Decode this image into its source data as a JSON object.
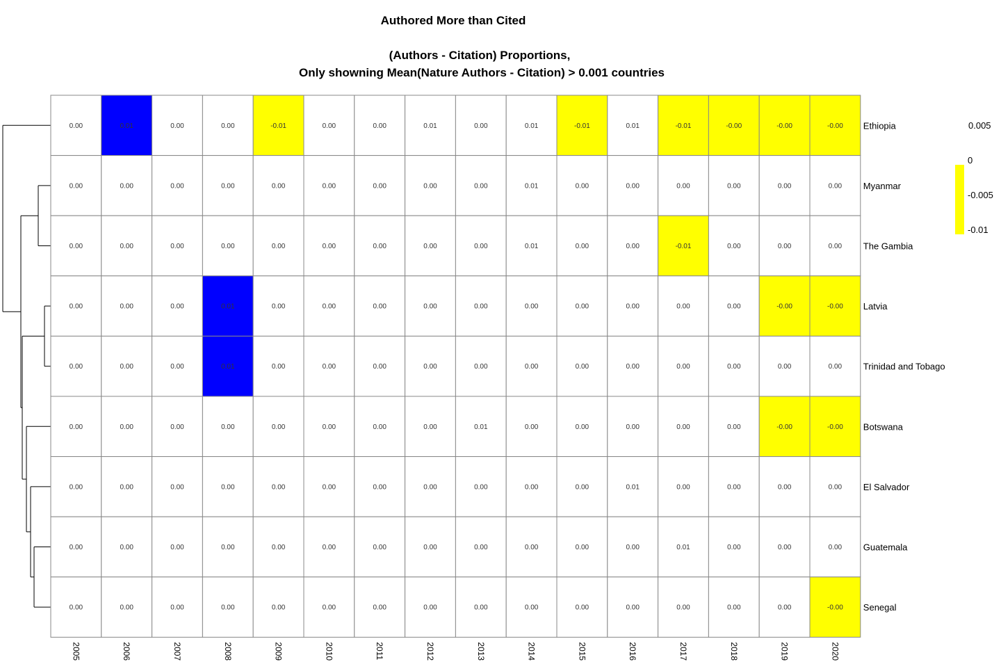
{
  "chart_data": {
    "type": "heatmap",
    "title": "Authored More than Cited",
    "subtitle_line1": "(Authors - Citation) Proportions,",
    "subtitle_line2": "Only showning Mean(Nature Authors - Citation) > 0.001 countries",
    "columns": [
      "2005",
      "2006",
      "2007",
      "2008",
      "2009",
      "2010",
      "2011",
      "2012",
      "2013",
      "2014",
      "2015",
      "2016",
      "2017",
      "2018",
      "2019",
      "2020"
    ],
    "rows": [
      "Ethiopia",
      "Myanmar",
      "The Gambia",
      "Latvia",
      "Trinidad and Tobago",
      "Botswana",
      "El Salvador",
      "Guatemala",
      "Senegal"
    ],
    "cell_labels": [
      [
        "0.00",
        "0.01",
        "0.00",
        "0.00",
        "-0.01",
        "0.00",
        "0.00",
        "0.01",
        "0.00",
        "0.01",
        "-0.01",
        "0.01",
        "-0.01",
        "-0.00",
        "-0.00",
        "-0.00"
      ],
      [
        "0.00",
        "0.00",
        "0.00",
        "0.00",
        "0.00",
        "0.00",
        "0.00",
        "0.00",
        "0.00",
        "0.01",
        "0.00",
        "0.00",
        "0.00",
        "0.00",
        "0.00",
        "0.00"
      ],
      [
        "0.00",
        "0.00",
        "0.00",
        "0.00",
        "0.00",
        "0.00",
        "0.00",
        "0.00",
        "0.00",
        "0.01",
        "0.00",
        "0.00",
        "-0.01",
        "0.00",
        "0.00",
        "0.00"
      ],
      [
        "0.00",
        "0.00",
        "0.00",
        "0.01",
        "0.00",
        "0.00",
        "0.00",
        "0.00",
        "0.00",
        "0.00",
        "0.00",
        "0.00",
        "0.00",
        "0.00",
        "-0.00",
        "-0.00"
      ],
      [
        "0.00",
        "0.00",
        "0.00",
        "0.01",
        "0.00",
        "0.00",
        "0.00",
        "0.00",
        "0.00",
        "0.00",
        "0.00",
        "0.00",
        "0.00",
        "0.00",
        "0.00",
        "0.00"
      ],
      [
        "0.00",
        "0.00",
        "0.00",
        "0.00",
        "0.00",
        "0.00",
        "0.00",
        "0.00",
        "0.01",
        "0.00",
        "0.00",
        "0.00",
        "0.00",
        "0.00",
        "-0.00",
        "-0.00"
      ],
      [
        "0.00",
        "0.00",
        "0.00",
        "0.00",
        "0.00",
        "0.00",
        "0.00",
        "0.00",
        "0.00",
        "0.00",
        "0.00",
        "0.01",
        "0.00",
        "0.00",
        "0.00",
        "0.00"
      ],
      [
        "0.00",
        "0.00",
        "0.00",
        "0.00",
        "0.00",
        "0.00",
        "0.00",
        "0.00",
        "0.00",
        "0.00",
        "0.00",
        "0.00",
        "0.01",
        "0.00",
        "0.00",
        "0.00"
      ],
      [
        "0.00",
        "0.00",
        "0.00",
        "0.00",
        "0.00",
        "0.00",
        "0.00",
        "0.00",
        "0.00",
        "0.00",
        "0.00",
        "0.00",
        "0.00",
        "0.00",
        "0.00",
        "-0.00"
      ]
    ],
    "cell_fill": [
      [
        "none",
        "high",
        "none",
        "none",
        "low",
        "none",
        "none",
        "none",
        "none",
        "none",
        "low",
        "none",
        "low",
        "low",
        "low",
        "low"
      ],
      [
        "none",
        "none",
        "none",
        "none",
        "none",
        "none",
        "none",
        "none",
        "none",
        "none",
        "none",
        "none",
        "none",
        "none",
        "none",
        "none"
      ],
      [
        "none",
        "none",
        "none",
        "none",
        "none",
        "none",
        "none",
        "none",
        "none",
        "none",
        "none",
        "none",
        "low",
        "none",
        "none",
        "none"
      ],
      [
        "none",
        "none",
        "none",
        "high",
        "none",
        "none",
        "none",
        "none",
        "none",
        "none",
        "none",
        "none",
        "none",
        "none",
        "low",
        "low"
      ],
      [
        "none",
        "none",
        "none",
        "high",
        "none",
        "none",
        "none",
        "none",
        "none",
        "none",
        "none",
        "none",
        "none",
        "none",
        "none",
        "none"
      ],
      [
        "none",
        "none",
        "none",
        "none",
        "none",
        "none",
        "none",
        "none",
        "none",
        "none",
        "none",
        "none",
        "none",
        "none",
        "low",
        "low"
      ],
      [
        "none",
        "none",
        "none",
        "none",
        "none",
        "none",
        "none",
        "none",
        "none",
        "none",
        "none",
        "none",
        "none",
        "none",
        "none",
        "none"
      ],
      [
        "none",
        "none",
        "none",
        "none",
        "none",
        "none",
        "none",
        "none",
        "none",
        "none",
        "none",
        "none",
        "none",
        "none",
        "none",
        "none"
      ],
      [
        "none",
        "none",
        "none",
        "none",
        "none",
        "none",
        "none",
        "none",
        "none",
        "none",
        "none",
        "none",
        "none",
        "none",
        "none",
        "low"
      ]
    ],
    "fill_colors": {
      "none": "#ffffff",
      "high": "#0000ff",
      "low": "#ffff00"
    },
    "legend": {
      "labels": [
        "0.005",
        "0",
        "-0.005",
        "-0.01"
      ],
      "color_range": [
        "#ffff00",
        "#ffff00"
      ],
      "placement": "right"
    },
    "dendrogram": {
      "side": "left",
      "leaf_order": [
        "Ethiopia",
        "Myanmar",
        "The Gambia",
        "Latvia",
        "Trinidad and Tobago",
        "Botswana",
        "El Salvador",
        "Guatemala",
        "Senegal"
      ]
    },
    "grid_color": "#888888"
  }
}
